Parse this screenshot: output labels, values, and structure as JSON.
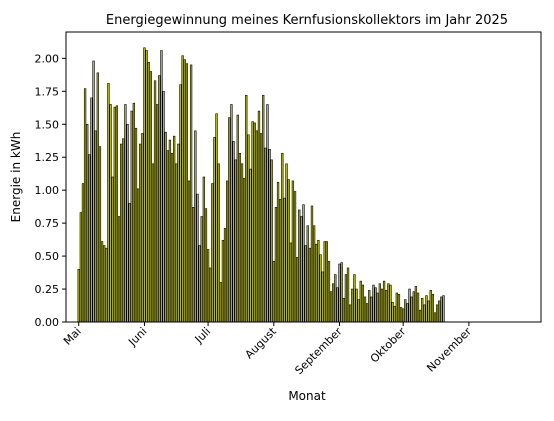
{
  "chart_data": {
    "type": "bar",
    "title": "Energiegewinnung meines Kernfusionskollektors im Jahr 2025",
    "xlabel": "Monat",
    "ylabel": "Energie in kWh",
    "ylim": [
      0,
      2.2
    ],
    "yticks": [
      0.0,
      0.25,
      0.5,
      0.75,
      1.0,
      1.25,
      1.5,
      1.75,
      2.0
    ],
    "ytick_labels": [
      "0.00",
      "0.25",
      "0.50",
      "0.75",
      "1.00",
      "1.25",
      "1.50",
      "1.75",
      "2.00"
    ],
    "xlim": [
      "2025-04-25",
      "2025-12-05"
    ],
    "month_ticks": [
      {
        "date": "2025-05-01",
        "label": "Mai"
      },
      {
        "date": "2025-06-01",
        "label": "Juni"
      },
      {
        "date": "2025-07-01",
        "label": "Juli"
      },
      {
        "date": "2025-08-01",
        "label": "August"
      },
      {
        "date": "2025-09-01",
        "label": "September"
      },
      {
        "date": "2025-10-01",
        "label": "Oktober"
      },
      {
        "date": "2025-11-01",
        "label": "November"
      }
    ],
    "grid": false,
    "bar_color": "#b5b81c",
    "bar_edge_color": "#000000",
    "start_date": "2025-05-01",
    "values": [
      0.4,
      0.83,
      1.05,
      1.77,
      1.5,
      1.27,
      1.7,
      1.98,
      1.45,
      1.89,
      1.33,
      0.61,
      0.58,
      0.56,
      1.81,
      1.65,
      1.1,
      1.63,
      1.64,
      0.8,
      1.35,
      1.39,
      1.65,
      1.5,
      0.9,
      1.6,
      1.66,
      1.47,
      1.01,
      1.35,
      1.43,
      2.08,
      2.06,
      1.97,
      1.9,
      1.2,
      1.83,
      1.65,
      1.87,
      2.06,
      1.75,
      1.44,
      1.3,
      1.38,
      1.28,
      1.41,
      1.2,
      1.35,
      1.8,
      2.02,
      1.99,
      1.96,
      1.07,
      1.95,
      0.87,
      1.45,
      0.97,
      0.58,
      0.8,
      1.1,
      0.86,
      0.55,
      0.41,
      1.05,
      1.4,
      1.58,
      1.2,
      0.3,
      0.62,
      0.71,
      1.07,
      1.55,
      1.65,
      1.37,
      1.23,
      1.57,
      1.28,
      1.2,
      1.09,
      1.72,
      1.42,
      1.16,
      1.52,
      1.51,
      1.45,
      1.6,
      1.43,
      1.72,
      1.32,
      1.65,
      1.31,
      1.23,
      0.46,
      0.87,
      1.06,
      0.93,
      1.28,
      0.94,
      1.2,
      1.08,
      0.6,
      1.07,
      0.99,
      0.49,
      0.85,
      0.8,
      0.89,
      0.58,
      0.73,
      0.56,
      0.88,
      0.73,
      0.59,
      0.62,
      0.51,
      0.38,
      0.61,
      0.61,
      0.46,
      0.23,
      0.29,
      0.36,
      0.26,
      0.44,
      0.45,
      0.18,
      0.36,
      0.41,
      0.13,
      0.25,
      0.36,
      0.25,
      0.17,
      0.31,
      0.28,
      0.19,
      0.14,
      0.24,
      0.19,
      0.28,
      0.26,
      0.22,
      0.29,
      0.25,
      0.31,
      0.24,
      0.29,
      0.28,
      0.15,
      0.12,
      0.22,
      0.21,
      0.11,
      0.1,
      0.17,
      0.14,
      0.25,
      0.19,
      0.23,
      0.27,
      0.22,
      0.09,
      0.18,
      0.13,
      0.2,
      0.16,
      0.24,
      0.21,
      0.07,
      0.13,
      0.16,
      0.19,
      0.2
    ]
  }
}
